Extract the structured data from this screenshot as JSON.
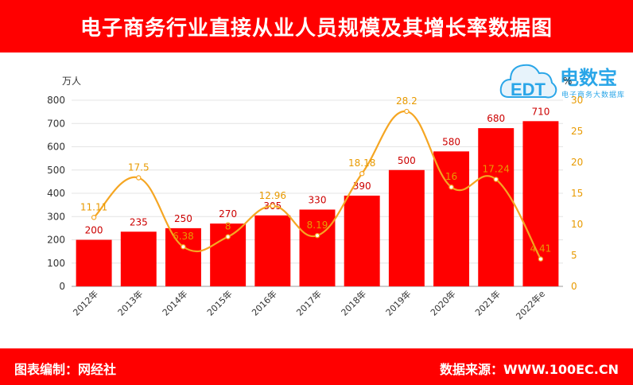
{
  "header": {
    "title": "电子商务行业直接从业人员规模及其增长率数据图"
  },
  "footer": {
    "left": "图表编制：网经社",
    "right": "数据来源：WWW.100EC.CN"
  },
  "logo": {
    "brand": "电数宝",
    "sub": "电子商务大数据库",
    "mark": "EDT",
    "icon": "cloud-icon"
  },
  "chart_data": {
    "type": "bar+line",
    "categories": [
      "2012年",
      "2013年",
      "2014年",
      "2015年",
      "2016年",
      "2017年",
      "2018年",
      "2019年",
      "2020年",
      "2021年",
      "2022年e"
    ],
    "series": [
      {
        "values": [
          200,
          235,
          250,
          270,
          305,
          330,
          390,
          500,
          580,
          680,
          710
        ]
      },
      {
        "values": [
          11.11,
          17.5,
          6.38,
          8,
          12.96,
          8.19,
          18.18,
          28.2,
          16,
          17.24,
          4.41
        ]
      }
    ],
    "ylabel_left": "万人",
    "ylabel_right": "%",
    "ylim_left": [
      0,
      800
    ],
    "ylim_right": [
      0,
      30
    ],
    "yticks_left": [
      0,
      100,
      200,
      300,
      400,
      500,
      600,
      700,
      800
    ],
    "yticks_right": [
      0,
      5,
      10,
      15,
      20,
      25,
      30
    ],
    "grid": true,
    "colors": {
      "bar": "#ff0000",
      "line": "#f5a623",
      "bar_label": "#cc0000",
      "line_label": "#e89a00"
    }
  }
}
